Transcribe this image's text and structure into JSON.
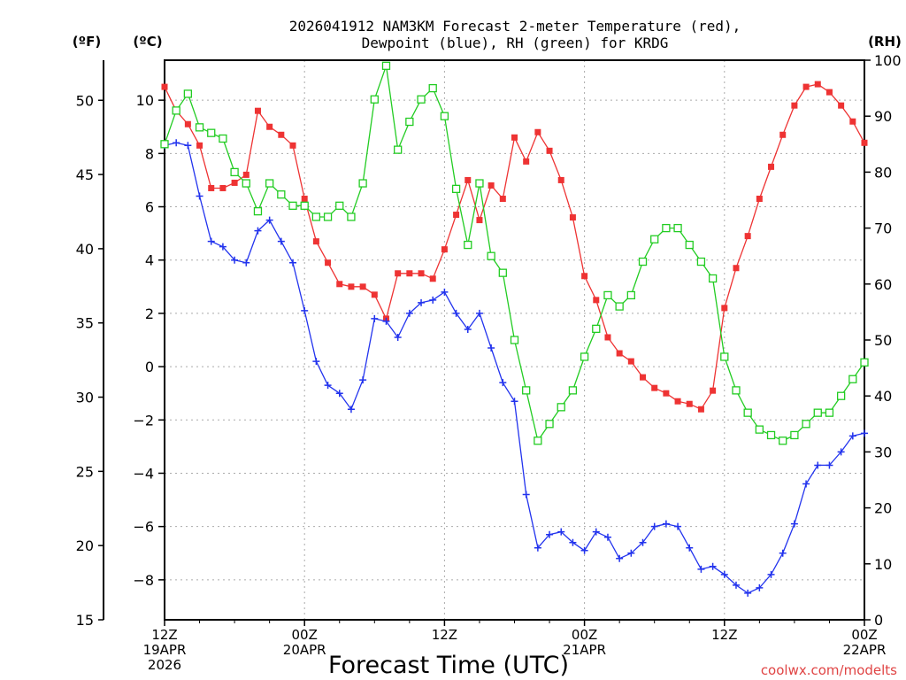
{
  "chart_data": {
    "type": "line",
    "title_line1": "2026041912 NAM3KM Forecast 2-meter Temperature (red),",
    "title_line2": "Dewpoint (blue), RH (green) for KRDG",
    "xlabel": "Forecast Time (UTC)",
    "credit": "coolwx.com/modelts",
    "units": {
      "f": "(ºF)",
      "c": "(ºC)",
      "rh": "(RH)"
    },
    "xlim_hours": [
      0,
      60
    ],
    "ylim_c": [
      -9.5,
      11.5
    ],
    "ylim_f": [
      15,
      52.7
    ],
    "ylim_rh": [
      0,
      100
    ],
    "yticks_c": [
      -8,
      -6,
      -4,
      -2,
      0,
      2,
      4,
      6,
      8,
      10
    ],
    "yticks_f": [
      15,
      20,
      25,
      30,
      35,
      40,
      45,
      50
    ],
    "yticks_rh": [
      0,
      10,
      20,
      30,
      40,
      50,
      60,
      70,
      80,
      90,
      100
    ],
    "xticks": [
      {
        "hour": 0,
        "lines": [
          "12Z",
          "19APR",
          "2026"
        ]
      },
      {
        "hour": 12,
        "lines": [
          "00Z",
          "20APR"
        ]
      },
      {
        "hour": 24,
        "lines": [
          "12Z"
        ]
      },
      {
        "hour": 36,
        "lines": [
          "00Z",
          "21APR"
        ]
      },
      {
        "hour": 48,
        "lines": [
          "12Z"
        ]
      },
      {
        "hour": 60,
        "lines": [
          "00Z",
          "22APR"
        ]
      }
    ],
    "series": [
      {
        "name": "2-meter Temperature",
        "axis": "c",
        "color": "#ee3333",
        "marker": "filled-square",
        "values": [
          10.5,
          9.6,
          9.1,
          8.3,
          6.7,
          6.7,
          6.9,
          7.2,
          9.6,
          9.0,
          8.7,
          8.3,
          6.3,
          4.7,
          3.9,
          3.1,
          3.0,
          3.0,
          2.7,
          1.8,
          3.5,
          3.5,
          3.5,
          3.3,
          4.4,
          5.7,
          7.0,
          5.5,
          6.8,
          6.3,
          8.6,
          7.7,
          8.8,
          8.1,
          7.0,
          5.6,
          3.4,
          2.5,
          1.1,
          0.5,
          0.2,
          -0.4,
          -0.8,
          -1.0,
          -1.3,
          -1.4,
          -1.6,
          -0.9,
          2.2,
          3.7,
          4.9,
          6.3,
          7.5,
          8.7,
          9.8,
          10.5,
          10.6,
          10.3,
          9.8,
          9.2,
          8.4
        ]
      },
      {
        "name": "Dewpoint",
        "axis": "c",
        "color": "#2233ee",
        "marker": "plus",
        "values": [
          8.3,
          8.4,
          8.3,
          6.4,
          4.7,
          4.5,
          4.0,
          3.9,
          5.1,
          5.5,
          4.7,
          3.9,
          2.1,
          0.2,
          -0.7,
          -1.0,
          -1.6,
          -0.5,
          1.8,
          1.7,
          1.1,
          2.0,
          2.4,
          2.5,
          2.8,
          2.0,
          1.4,
          2.0,
          0.7,
          -0.6,
          -1.3,
          -4.8,
          -6.8,
          -6.3,
          -6.2,
          -6.6,
          -6.9,
          -6.2,
          -6.4,
          -7.2,
          -7.0,
          -6.6,
          -6.0,
          -5.9,
          -6.0,
          -6.8,
          -7.6,
          -7.5,
          -7.8,
          -8.2,
          -8.5,
          -8.3,
          -7.8,
          -7.0,
          -5.9,
          -4.4,
          -3.7,
          -3.7,
          -3.2,
          -2.6,
          -2.5
        ]
      },
      {
        "name": "RH",
        "axis": "rh",
        "color": "#22cc22",
        "marker": "open-square",
        "values": [
          85,
          91,
          94,
          88,
          87,
          86,
          80,
          78,
          73,
          78,
          76,
          74,
          74,
          72,
          72,
          74,
          72,
          78,
          93,
          99,
          84,
          89,
          93,
          95,
          90,
          77,
          67,
          78,
          65,
          62,
          50,
          41,
          32,
          35,
          38,
          41,
          47,
          52,
          58,
          56,
          58,
          64,
          68,
          70,
          70,
          67,
          64,
          61,
          47,
          41,
          37,
          34,
          33,
          32,
          33,
          35,
          37,
          37,
          40,
          43,
          46
        ]
      }
    ]
  }
}
